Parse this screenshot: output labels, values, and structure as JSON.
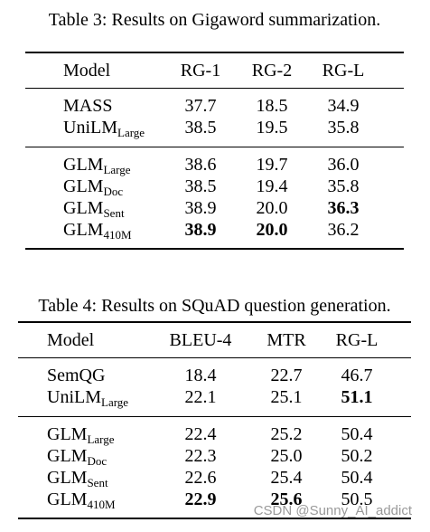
{
  "tables": [
    {
      "caption": "Table 3: Results on Gigaword summarization.",
      "header": [
        "Model",
        "RG-1",
        "RG-2",
        "RG-L"
      ],
      "groups": [
        [
          {
            "model": "MASS",
            "cells": [
              "37.7",
              "18.5",
              "34.9"
            ],
            "bold": [
              false,
              false,
              false
            ]
          },
          {
            "model": "UniLM",
            "model_sub": "Large",
            "cells": [
              "38.5",
              "19.5",
              "35.8"
            ],
            "bold": [
              false,
              false,
              false
            ]
          }
        ],
        [
          {
            "model": "GLM",
            "model_sub": "Large",
            "cells": [
              "38.6",
              "19.7",
              "36.0"
            ],
            "bold": [
              false,
              false,
              false
            ]
          },
          {
            "model": "GLM",
            "model_sub": "Doc",
            "cells": [
              "38.5",
              "19.4",
              "35.8"
            ],
            "bold": [
              false,
              false,
              false
            ]
          },
          {
            "model": "GLM",
            "model_sub": "Sent",
            "cells": [
              "38.9",
              "20.0",
              "36.3"
            ],
            "bold": [
              false,
              false,
              true
            ]
          },
          {
            "model": "GLM",
            "model_sub": "410M",
            "cells": [
              "38.9",
              "20.0",
              "36.2"
            ],
            "bold": [
              true,
              true,
              false
            ]
          }
        ]
      ]
    },
    {
      "caption": "Table 4: Results on SQuAD question generation.",
      "header": [
        "Model",
        "BLEU-4",
        "MTR",
        "RG-L"
      ],
      "groups": [
        [
          {
            "model": "SemQG",
            "cells": [
              "18.4",
              "22.7",
              "46.7"
            ],
            "bold": [
              false,
              false,
              false
            ]
          },
          {
            "model": "UniLM",
            "model_sub": "Large",
            "cells": [
              "22.1",
              "25.1",
              "51.1"
            ],
            "bold": [
              false,
              false,
              true
            ]
          }
        ],
        [
          {
            "model": "GLM",
            "model_sub": "Large",
            "cells": [
              "22.4",
              "25.2",
              "50.4"
            ],
            "bold": [
              false,
              false,
              false
            ]
          },
          {
            "model": "GLM",
            "model_sub": "Doc",
            "cells": [
              "22.3",
              "25.0",
              "50.2"
            ],
            "bold": [
              false,
              false,
              false
            ]
          },
          {
            "model": "GLM",
            "model_sub": "Sent",
            "cells": [
              "22.6",
              "25.4",
              "50.4"
            ],
            "bold": [
              false,
              false,
              false
            ]
          },
          {
            "model": "GLM",
            "model_sub": "410M",
            "cells": [
              "22.9",
              "25.6",
              "50.5"
            ],
            "bold": [
              true,
              true,
              false
            ]
          }
        ]
      ]
    }
  ],
  "watermark": "CSDN @Sunny_AI_addict"
}
